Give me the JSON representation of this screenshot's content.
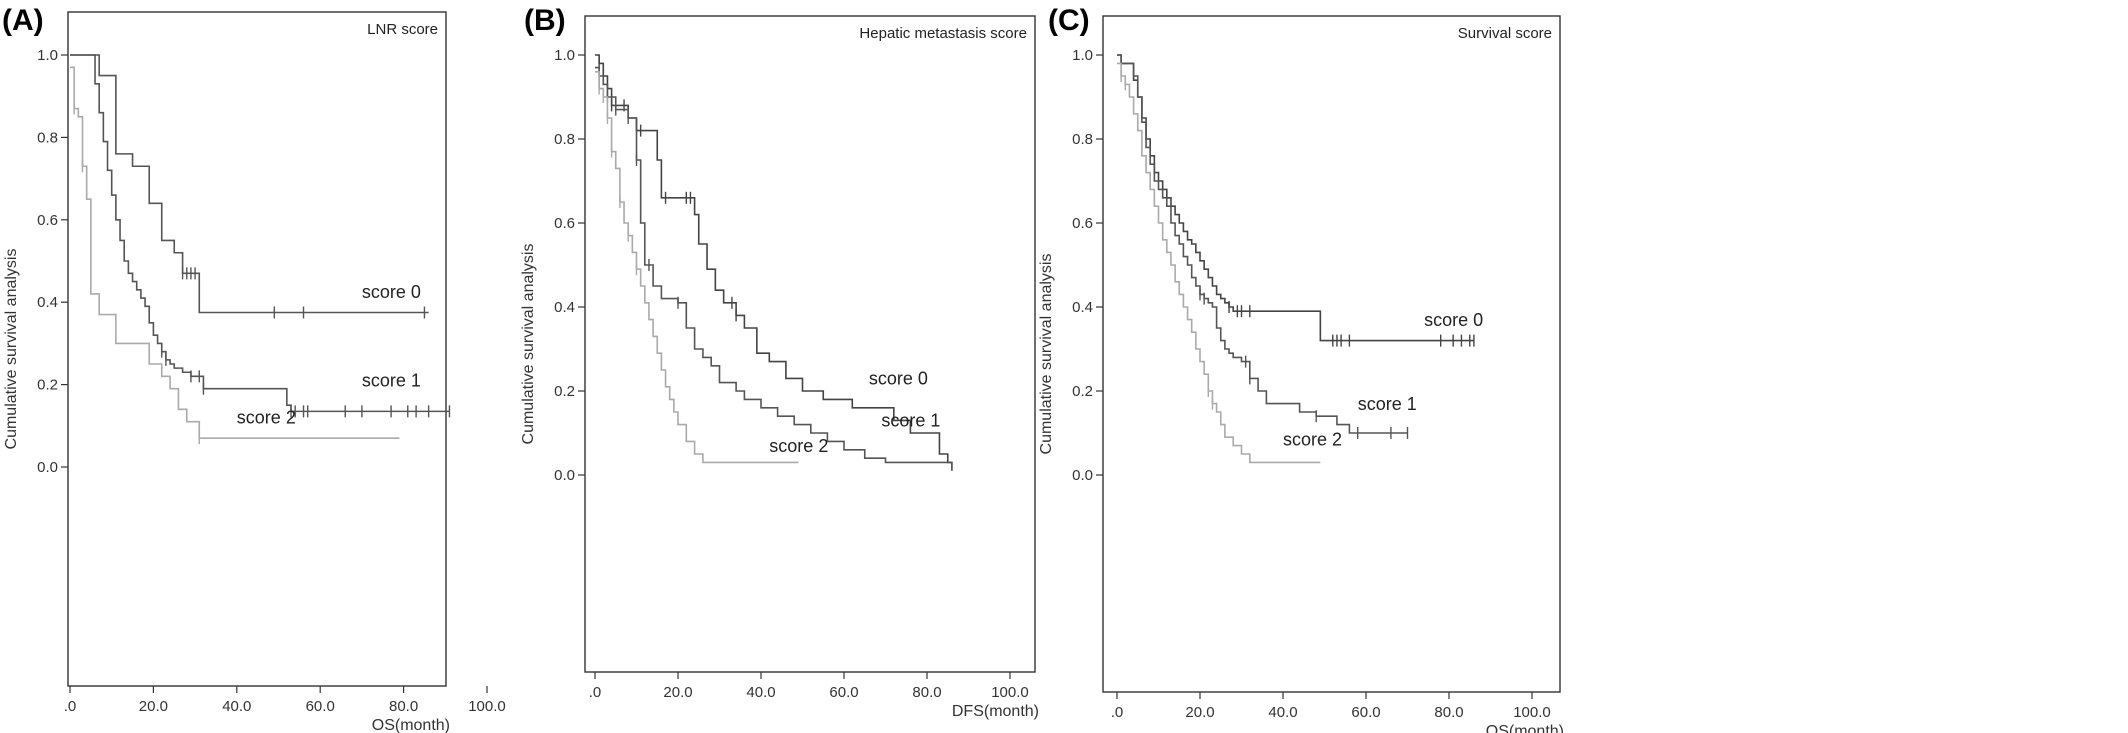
{
  "chart_data": [
    {
      "type": "line",
      "panel": "(A)",
      "title": "LNR score",
      "ylabel": "Cumulative survival analysis",
      "xlabel": "OS(month)",
      "xlim": [
        0,
        100
      ],
      "ylim": [
        0,
        1
      ],
      "xticks": [
        ".0",
        "20.0",
        "40.0",
        "60.0",
        "80.0",
        "100.0"
      ],
      "yticks": [
        "0.0",
        "0.2",
        "0.4",
        "0.6",
        "0.8",
        "1.0"
      ],
      "series": [
        {
          "name": "score 0",
          "color": "#555555",
          "x": [
            0,
            7,
            11,
            15,
            19,
            22,
            25,
            27,
            31,
            86
          ],
          "y": [
            1.0,
            0.95,
            0.76,
            0.73,
            0.64,
            0.55,
            0.52,
            0.47,
            0.375,
            0.375
          ],
          "censor_x": [
            27,
            28,
            29,
            30,
            49,
            56,
            85
          ],
          "label_at": [
            70,
            0.41
          ]
        },
        {
          "name": "score 1",
          "color": "#555555",
          "x": [
            0,
            5,
            6,
            7,
            8,
            9,
            10,
            11,
            12,
            13,
            14,
            15,
            16,
            17,
            18,
            19,
            20,
            21,
            22,
            23,
            24,
            25,
            27,
            29,
            32,
            35,
            52,
            53,
            91
          ],
          "y": [
            1.0,
            1.0,
            0.93,
            0.86,
            0.79,
            0.72,
            0.66,
            0.6,
            0.55,
            0.5,
            0.47,
            0.45,
            0.43,
            0.41,
            0.39,
            0.35,
            0.32,
            0.3,
            0.28,
            0.26,
            0.25,
            0.24,
            0.23,
            0.22,
            0.19,
            0.19,
            0.15,
            0.135,
            0.135
          ],
          "censor_x": [
            22,
            23,
            29,
            31,
            32,
            53,
            54,
            56,
            57,
            66,
            70,
            77,
            81,
            83,
            86,
            91
          ],
          "label_at": [
            70,
            0.195
          ]
        },
        {
          "name": "score 2",
          "color": "#aaaaaa",
          "x": [
            0,
            1,
            2,
            3,
            4,
            5,
            7,
            9,
            11,
            13,
            16,
            19,
            22,
            24,
            26,
            28,
            31,
            79
          ],
          "y": [
            0.97,
            0.87,
            0.85,
            0.73,
            0.65,
            0.42,
            0.37,
            0.37,
            0.3,
            0.3,
            0.3,
            0.25,
            0.22,
            0.19,
            0.14,
            0.11,
            0.07,
            0.07
          ],
          "censor_x": [
            1,
            3,
            31
          ],
          "label_at": [
            40,
            0.105
          ]
        }
      ]
    },
    {
      "type": "line",
      "panel": "(B)",
      "title": "Hepatic metastasis score",
      "ylabel": "Cumulative survival analysis",
      "xlabel": "DFS(month)",
      "xlim": [
        0,
        100
      ],
      "ylim": [
        0,
        1
      ],
      "xticks": [
        ".0",
        "20.0",
        "40.0",
        "60.0",
        "80.0",
        "100.0"
      ],
      "yticks": [
        "0.0",
        "0.2",
        "0.4",
        "0.6",
        "0.8",
        "1.0"
      ],
      "series": [
        {
          "name": "score 0",
          "color": "#444444",
          "x": [
            0,
            1,
            2,
            3,
            4,
            6,
            8,
            10,
            15,
            16,
            23,
            24,
            25,
            27,
            29,
            31,
            34,
            36,
            39,
            42,
            46,
            50,
            55,
            62,
            66,
            72,
            76,
            83,
            85,
            86
          ],
          "y": [
            1.0,
            0.98,
            0.95,
            0.92,
            0.88,
            0.88,
            0.85,
            0.82,
            0.75,
            0.66,
            0.66,
            0.62,
            0.55,
            0.49,
            0.44,
            0.41,
            0.38,
            0.35,
            0.29,
            0.27,
            0.23,
            0.2,
            0.18,
            0.16,
            0.16,
            0.13,
            0.1,
            0.05,
            0.03,
            0.01
          ],
          "censor_x": [
            1,
            2,
            4,
            7,
            11,
            17,
            22,
            23,
            33,
            34
          ],
          "label_at": [
            66,
            0.215
          ]
        },
        {
          "name": "score 1",
          "color": "#555555",
          "x": [
            0,
            1,
            2,
            3,
            5,
            8,
            10,
            11,
            12,
            14,
            16,
            20,
            22,
            24,
            26,
            28,
            30,
            34,
            36,
            40,
            44,
            48,
            52,
            56,
            60,
            65,
            70,
            86
          ],
          "y": [
            0.97,
            0.95,
            0.93,
            0.9,
            0.87,
            0.85,
            0.75,
            0.6,
            0.5,
            0.45,
            0.42,
            0.41,
            0.35,
            0.3,
            0.28,
            0.26,
            0.22,
            0.2,
            0.18,
            0.16,
            0.14,
            0.12,
            0.1,
            0.08,
            0.06,
            0.04,
            0.03,
            0.03
          ],
          "censor_x": [
            1,
            3,
            5,
            8,
            10,
            13,
            20
          ],
          "label_at": [
            69,
            0.115
          ]
        },
        {
          "name": "score 2",
          "color": "#aaaaaa",
          "x": [
            0,
            1,
            2,
            3,
            4,
            5,
            6,
            7,
            8,
            9,
            10,
            11,
            12,
            13,
            14,
            15,
            16,
            17,
            18,
            19,
            20,
            22,
            24,
            26,
            49
          ],
          "y": [
            0.96,
            0.92,
            0.9,
            0.85,
            0.77,
            0.73,
            0.65,
            0.6,
            0.57,
            0.53,
            0.49,
            0.45,
            0.41,
            0.37,
            0.33,
            0.29,
            0.25,
            0.21,
            0.18,
            0.15,
            0.12,
            0.08,
            0.05,
            0.03,
            0.03
          ],
          "censor_x": [
            1,
            2,
            3,
            4,
            6,
            8,
            10
          ],
          "label_at": [
            42,
            0.055
          ]
        }
      ]
    },
    {
      "type": "line",
      "panel": "(C)",
      "title": "Survival score",
      "ylabel": "Cumulative survival analysis",
      "xlabel": "OS(month)",
      "xlim": [
        0,
        100
      ],
      "ylim": [
        0,
        1
      ],
      "xticks": [
        ".0",
        "20.0",
        "40.0",
        "60.0",
        "80.0",
        "100.0"
      ],
      "yticks": [
        "0.0",
        "0.2",
        "0.4",
        "0.6",
        "0.8",
        "1.0"
      ],
      "series": [
        {
          "name": "score 0",
          "color": "#444444",
          "x": [
            0,
            1,
            3,
            4,
            5,
            6,
            7,
            8,
            9,
            10,
            11,
            12,
            13,
            14,
            15,
            16,
            17,
            18,
            19,
            20,
            21,
            22,
            23,
            24,
            25,
            26,
            27,
            28,
            29,
            49,
            50,
            86
          ],
          "y": [
            1.0,
            0.98,
            0.98,
            0.94,
            0.9,
            0.85,
            0.8,
            0.76,
            0.72,
            0.7,
            0.68,
            0.66,
            0.64,
            0.62,
            0.6,
            0.58,
            0.56,
            0.55,
            0.53,
            0.51,
            0.49,
            0.47,
            0.45,
            0.43,
            0.42,
            0.41,
            0.4,
            0.39,
            0.39,
            0.32,
            0.32,
            0.32
          ],
          "censor_x": [
            27,
            29,
            30,
            32,
            52,
            53,
            54,
            56,
            78,
            81,
            83,
            85,
            86
          ],
          "label_at": [
            74,
            0.355
          ]
        },
        {
          "name": "score 1",
          "color": "#555555",
          "x": [
            0,
            1,
            3,
            4,
            5,
            6,
            7,
            8,
            9,
            10,
            11,
            12,
            13,
            14,
            15,
            16,
            17,
            18,
            19,
            20,
            21,
            22,
            23,
            24,
            25,
            26,
            27,
            28,
            30,
            32,
            34,
            36,
            40,
            44,
            48,
            53,
            56,
            70
          ],
          "y": [
            1.0,
            0.98,
            0.98,
            0.95,
            0.9,
            0.84,
            0.78,
            0.74,
            0.7,
            0.68,
            0.66,
            0.64,
            0.6,
            0.57,
            0.55,
            0.52,
            0.5,
            0.47,
            0.45,
            0.43,
            0.42,
            0.41,
            0.4,
            0.35,
            0.32,
            0.3,
            0.29,
            0.28,
            0.27,
            0.23,
            0.2,
            0.17,
            0.17,
            0.15,
            0.14,
            0.12,
            0.1,
            0.1
          ],
          "censor_x": [
            20,
            21,
            31,
            32,
            48,
            58,
            66,
            70
          ],
          "label_at": [
            58,
            0.155
          ]
        },
        {
          "name": "score 2",
          "color": "#aaaaaa",
          "x": [
            0,
            1,
            2,
            3,
            4,
            5,
            6,
            7,
            8,
            9,
            10,
            11,
            12,
            13,
            14,
            15,
            16,
            17,
            18,
            19,
            20,
            21,
            22,
            23,
            24,
            25,
            26,
            28,
            30,
            32,
            34,
            49
          ],
          "y": [
            0.98,
            0.95,
            0.93,
            0.9,
            0.86,
            0.82,
            0.76,
            0.72,
            0.68,
            0.64,
            0.6,
            0.56,
            0.53,
            0.5,
            0.46,
            0.43,
            0.4,
            0.37,
            0.34,
            0.3,
            0.27,
            0.24,
            0.2,
            0.17,
            0.15,
            0.12,
            0.09,
            0.07,
            0.05,
            0.03,
            0.03,
            0.03
          ],
          "censor_x": [
            1,
            2,
            22,
            23
          ],
          "label_at": [
            40,
            0.07
          ]
        }
      ]
    }
  ]
}
